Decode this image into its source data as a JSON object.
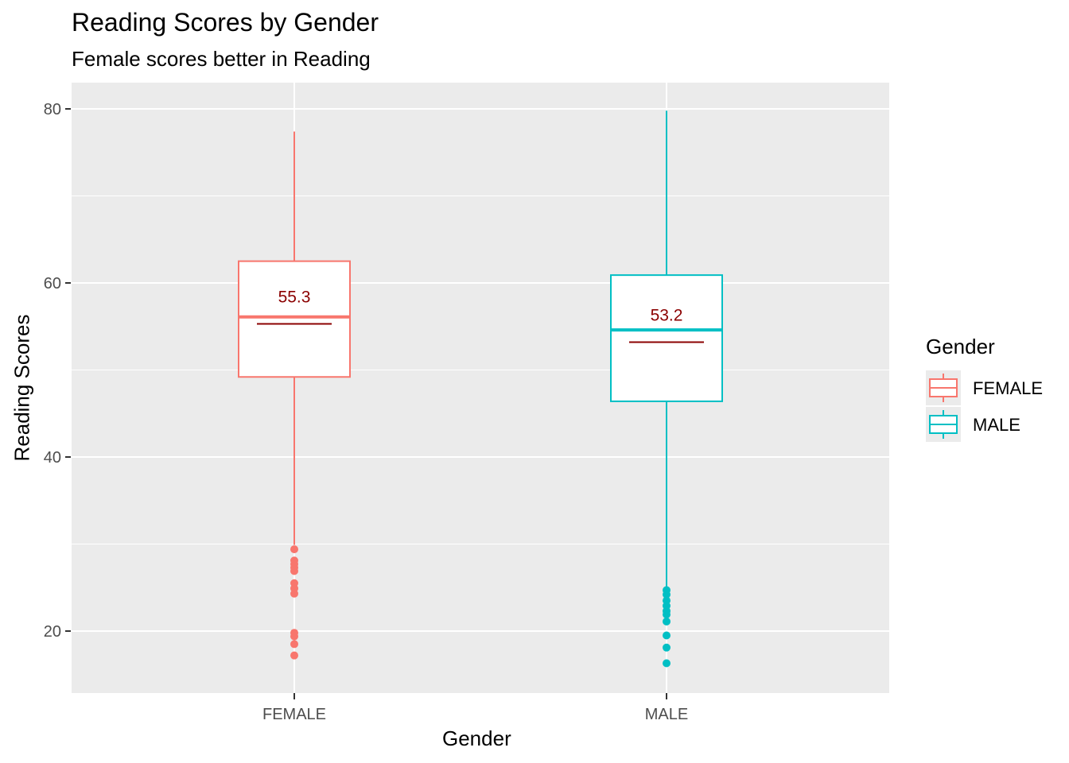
{
  "chart_data": {
    "type": "boxplot",
    "title": "Reading Scores by Gender",
    "subtitle": "Female scores better in Reading",
    "xlabel": "Gender",
    "ylabel": "Reading Scores",
    "ylim": [
      12.8,
      82.9
    ],
    "yticks": [
      20,
      40,
      60,
      80
    ],
    "categories": [
      "FEMALE",
      "MALE"
    ],
    "grid": true,
    "legend": {
      "title": "Gender",
      "placement": "right",
      "entries": [
        "FEMALE",
        "MALE"
      ]
    },
    "series": [
      {
        "name": "FEMALE",
        "color": "#F8766D",
        "whisker_low": 29.9,
        "q1": 49.2,
        "median": 56.1,
        "q3": 62.5,
        "whisker_high": 77.4,
        "mean": 55.3,
        "mean_label": "55.3",
        "outliers": [
          29.4,
          28.1,
          27.7,
          27.3,
          26.9,
          25.5,
          24.9,
          24.3,
          19.8,
          19.4,
          18.5,
          17.2
        ]
      },
      {
        "name": "MALE",
        "color": "#00BFC4",
        "whisker_low": 25.1,
        "q1": 46.4,
        "median": 54.6,
        "q3": 60.9,
        "whisker_high": 79.8,
        "mean": 53.2,
        "mean_label": "53.2",
        "outliers": [
          24.7,
          24.2,
          23.5,
          22.9,
          22.3,
          21.9,
          21.1,
          19.5,
          18.1,
          16.3
        ]
      }
    ],
    "mean_color": "#8B0000"
  }
}
